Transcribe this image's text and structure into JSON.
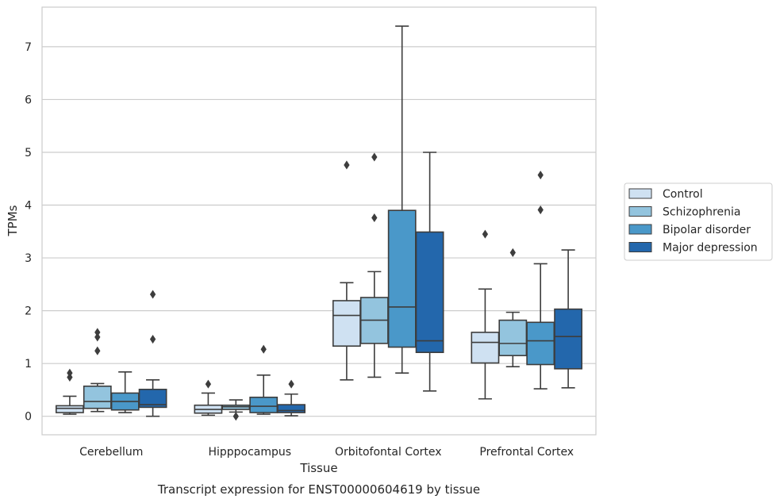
{
  "chart_data": {
    "type": "box",
    "caption": "Transcript expression for ENST00000604619 by tissue",
    "xlabel": "Tissue",
    "ylabel": "TPMs",
    "ylim": [
      -0.35,
      7.75
    ],
    "yticks": [
      0,
      1,
      2,
      3,
      4,
      5,
      6,
      7
    ],
    "grid": true,
    "legend_position": "right",
    "categories": [
      "Cerebellum",
      "Hipppocampus",
      "Orbitofontal Cortex",
      "Prefrontal Cortex"
    ],
    "series": [
      {
        "name": "Control",
        "color": "#cfe1f2",
        "boxes": [
          {
            "whisker_low": 0.04,
            "q1": 0.07,
            "median": 0.15,
            "q3": 0.2,
            "whisker_high": 0.38,
            "outliers": [
              0.74,
              0.82
            ]
          },
          {
            "whisker_low": 0.02,
            "q1": 0.06,
            "median": 0.13,
            "q3": 0.21,
            "whisker_high": 0.44,
            "outliers": [
              0.61
            ]
          },
          {
            "whisker_low": 0.69,
            "q1": 1.33,
            "median": 1.91,
            "q3": 2.19,
            "whisker_high": 2.53,
            "outliers": [
              4.76
            ]
          },
          {
            "whisker_low": 0.33,
            "q1": 1.01,
            "median": 1.4,
            "q3": 1.59,
            "whisker_high": 2.41,
            "outliers": [
              3.45
            ]
          }
        ]
      },
      {
        "name": "Schizophrenia",
        "color": "#93c4de",
        "boxes": [
          {
            "whisker_low": 0.09,
            "q1": 0.15,
            "median": 0.28,
            "q3": 0.57,
            "whisker_high": 0.62,
            "outliers": [
              1.24,
              1.5,
              1.59
            ]
          },
          {
            "whisker_low": 0.08,
            "q1": 0.13,
            "median": 0.18,
            "q3": 0.21,
            "whisker_high": 0.31,
            "outliers": [
              0.0
            ]
          },
          {
            "whisker_low": 0.74,
            "q1": 1.38,
            "median": 1.82,
            "q3": 2.25,
            "whisker_high": 2.74,
            "outliers": [
              3.76,
              4.91
            ]
          },
          {
            "whisker_low": 0.94,
            "q1": 1.15,
            "median": 1.38,
            "q3": 1.82,
            "whisker_high": 1.97,
            "outliers": [
              3.1
            ]
          }
        ]
      },
      {
        "name": "Bipolar disorder",
        "color": "#4a98c9",
        "boxes": [
          {
            "whisker_low": 0.07,
            "q1": 0.12,
            "median": 0.28,
            "q3": 0.44,
            "whisker_high": 0.84,
            "outliers": []
          },
          {
            "whisker_low": 0.04,
            "q1": 0.07,
            "median": 0.19,
            "q3": 0.36,
            "whisker_high": 0.78,
            "outliers": [
              1.27
            ]
          },
          {
            "whisker_low": 0.82,
            "q1": 1.31,
            "median": 2.07,
            "q3": 3.9,
            "whisker_high": 7.39,
            "outliers": []
          },
          {
            "whisker_low": 0.52,
            "q1": 0.98,
            "median": 1.43,
            "q3": 1.78,
            "whisker_high": 2.89,
            "outliers": [
              3.91,
              4.57
            ]
          }
        ]
      },
      {
        "name": "Major depression",
        "color": "#2367ac",
        "boxes": [
          {
            "whisker_low": 0.0,
            "q1": 0.17,
            "median": 0.22,
            "q3": 0.51,
            "whisker_high": 0.69,
            "outliers": [
              1.46,
              2.31
            ]
          },
          {
            "whisker_low": 0.01,
            "q1": 0.07,
            "median": 0.11,
            "q3": 0.22,
            "whisker_high": 0.42,
            "outliers": [
              0.61
            ]
          },
          {
            "whisker_low": 0.48,
            "q1": 1.21,
            "median": 1.43,
            "q3": 3.49,
            "whisker_high": 5.0,
            "outliers": []
          },
          {
            "whisker_low": 0.54,
            "q1": 0.9,
            "median": 1.51,
            "q3": 2.03,
            "whisker_high": 3.15,
            "outliers": []
          }
        ]
      }
    ]
  }
}
